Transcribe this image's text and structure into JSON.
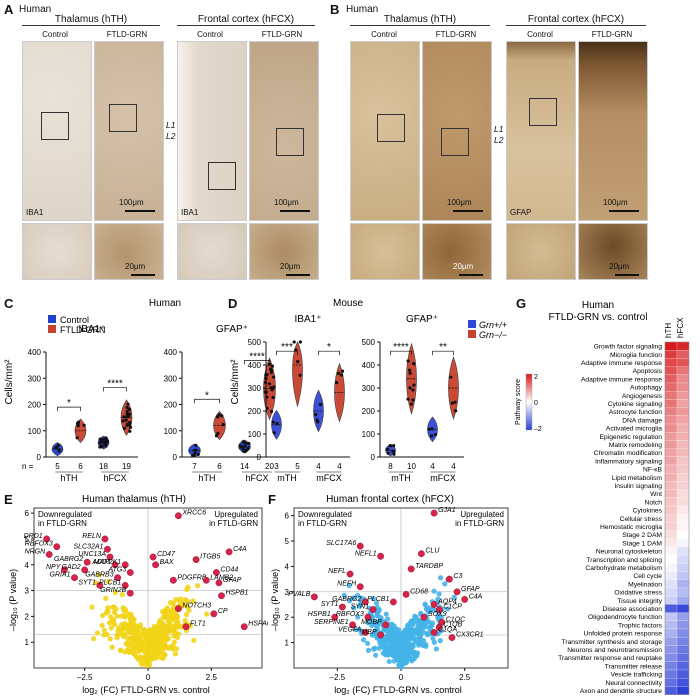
{
  "panelA": {
    "letter": "A",
    "species": "Human",
    "groups": [
      {
        "title": "Thalamus (hTH)",
        "conds": [
          "Control",
          "FTLD-GRN"
        ]
      },
      {
        "title": "Frontal cortex (hFCX)",
        "conds": [
          "Control",
          "FTLD-GRN"
        ]
      }
    ],
    "stain": "IBA1",
    "scale_main": "100μm",
    "scale_zoom": "20μm",
    "layers": [
      "L1",
      "L2"
    ]
  },
  "panelB": {
    "letter": "B",
    "species": "Human",
    "groups": [
      {
        "title": "Thalamus (hTH)",
        "conds": [
          "Control",
          "FTLD-GRN"
        ]
      },
      {
        "title": "Frontal cortex (hFCX)",
        "conds": [
          "Control",
          "FTLD-GRN"
        ]
      }
    ],
    "stain": "GFAP",
    "scale_main": "100μm",
    "scale_zoom": "20μm",
    "layers": [
      "L1",
      "L2"
    ]
  },
  "panelC": {
    "letter": "C",
    "species": "Human",
    "ylabel": "Cells/mm²",
    "legend": [
      "Control",
      "FTLD-GRN"
    ],
    "colors": {
      "control": "#1f3fd1",
      "ftld": "#c9412d"
    },
    "chart_data": [
      {
        "type": "violin",
        "title": "IBA1⁺",
        "ylim": [
          0,
          400
        ],
        "yticks": [
          "0",
          "100",
          "200",
          "300",
          "400"
        ],
        "groups": [
          "hTH",
          "hFCX"
        ],
        "n_label": "n =",
        "n": [
          "5",
          "6",
          "18",
          "19"
        ],
        "medians": [
          30,
          100,
          55,
          150
        ],
        "sig": [
          "*",
          "****"
        ]
      },
      {
        "type": "violin",
        "title": "GFAP⁺",
        "ylim": [
          0,
          400
        ],
        "yticks": [
          "0",
          "100",
          "200",
          "300",
          "400"
        ],
        "groups": [
          "hTH",
          "hFCX"
        ],
        "n_label": "n =",
        "n": [
          "7",
          "6",
          "14",
          "20"
        ],
        "medians": [
          25,
          120,
          40,
          260
        ],
        "sig": [
          "*",
          "****"
        ]
      }
    ]
  },
  "panelD": {
    "letter": "D",
    "species": "Mouse",
    "ylabel": "Cells/mm²",
    "legend": [
      "Grn+/+",
      "Grn−/−"
    ],
    "colors": {
      "wt": "#3347d6",
      "ko": "#c9412d"
    },
    "chart_data": [
      {
        "type": "violin",
        "title": "IBA1⁺",
        "ylim": [
          0,
          500
        ],
        "yticks": [
          "0",
          "100",
          "200",
          "300",
          "400",
          "500"
        ],
        "groups": [
          "mTH",
          "mFCX"
        ],
        "n": [
          "3",
          "5",
          "4",
          "4"
        ],
        "medians": [
          140,
          400,
          200,
          280
        ],
        "sig": [
          "***",
          "*"
        ]
      },
      {
        "type": "violin",
        "title": "GFAP⁺",
        "ylim": [
          0,
          500
        ],
        "yticks": [
          "0",
          "100",
          "200",
          "300",
          "400",
          "500"
        ],
        "groups": [
          "mTH",
          "mFCX"
        ],
        "n": [
          "8",
          "10",
          "4",
          "4"
        ],
        "medians": [
          30,
          340,
          120,
          300
        ],
        "sig": [
          "****",
          "**"
        ]
      }
    ]
  },
  "panelE": {
    "letter": "E",
    "title": "Human thalamus (hTH)",
    "down": "Downregulated in FTLD-GRN",
    "up": "Upregulated in FTLD-GRN",
    "xlabel": "log₂ (FC) FTLD-GRN vs. control",
    "ylabel": "–log₁₀ (P value)",
    "chart_data": {
      "type": "scatter",
      "xlim": [
        -4.5,
        4.5
      ],
      "ylim": [
        0,
        6.2
      ],
      "xticks": [
        "–2.5",
        "0",
        "2.5"
      ],
      "yticks": [
        "1",
        "2",
        "3",
        "4",
        "5",
        "6"
      ],
      "bg_color": "#f2d417",
      "hi_color": "#d9224a",
      "genes": [
        {
          "g": "XRCC6",
          "x": 1.2,
          "y": 5.9
        },
        {
          "g": "DRD1",
          "x": -4.0,
          "y": 5.0
        },
        {
          "g": "RELN",
          "x": -1.7,
          "y": 5.0
        },
        {
          "g": "RBFOX3",
          "x": -3.6,
          "y": 4.7
        },
        {
          "g": "SLC32A1",
          "x": -1.6,
          "y": 4.6
        },
        {
          "g": "C4A",
          "x": 3.2,
          "y": 4.5
        },
        {
          "g": "NRGN",
          "x": -3.9,
          "y": 4.4
        },
        {
          "g": "UNC13A",
          "x": -1.5,
          "y": 4.3
        },
        {
          "g": "CD47",
          "x": 0.2,
          "y": 4.3
        },
        {
          "g": "ITGB5",
          "x": 1.9,
          "y": 4.2
        },
        {
          "g": "GABRG2",
          "x": -2.4,
          "y": 4.1
        },
        {
          "g": "ADD1",
          "x": -1.3,
          "y": 4.0
        },
        {
          "g": "MAP2K1",
          "x": -0.9,
          "y": 4.0
        },
        {
          "g": "BAX",
          "x": 0.3,
          "y": 4.0
        },
        {
          "g": "NPY",
          "x": -3.3,
          "y": 3.8
        },
        {
          "g": "GAD2",
          "x": -2.5,
          "y": 3.8
        },
        {
          "g": "ATG3",
          "x": -0.7,
          "y": 3.7
        },
        {
          "g": "CD44",
          "x": 2.7,
          "y": 3.7
        },
        {
          "g": "GRIA1",
          "x": -2.9,
          "y": 3.5
        },
        {
          "g": "GABRB3",
          "x": -1.2,
          "y": 3.5
        },
        {
          "g": "PDGFRB",
          "x": 1.0,
          "y": 3.4
        },
        {
          "g": "LAMB2",
          "x": 2.3,
          "y": 3.4
        },
        {
          "g": "SYT1",
          "x": -1.9,
          "y": 3.2
        },
        {
          "g": "PLCB1",
          "x": -0.9,
          "y": 3.2
        },
        {
          "g": "GFAP",
          "x": 2.8,
          "y": 3.3
        },
        {
          "g": "GRIN2B",
          "x": -0.7,
          "y": 2.9
        },
        {
          "g": "HSPB1",
          "x": 2.9,
          "y": 2.8
        },
        {
          "g": "NOTCH3",
          "x": 1.2,
          "y": 2.3
        },
        {
          "g": "CP",
          "x": 2.6,
          "y": 2.1
        },
        {
          "g": "FLT1",
          "x": 1.5,
          "y": 1.6
        },
        {
          "g": "HSPA6",
          "x": 3.8,
          "y": 1.6
        }
      ]
    }
  },
  "panelF": {
    "letter": "F",
    "title": "Human frontal cortex (hFCX)",
    "down": "Downregulated in FTLD-GRN",
    "up": "Upregulated in FTLD-GRN",
    "xlabel": "log₂ (FC) FTLD-GRN vs. control",
    "ylabel": "–log₁₀ (P value)",
    "chart_data": {
      "type": "scatter",
      "xlim": [
        -4.2,
        4.2
      ],
      "ylim": [
        0,
        6.3
      ],
      "xticks": [
        "–2.5",
        "0",
        "2.5"
      ],
      "yticks": [
        "1",
        "2",
        "3",
        "4",
        "5",
        "6"
      ],
      "bg_color": "#45b3e8",
      "hi_color": "#d9224a",
      "genes": [
        {
          "g": "GJA1",
          "x": 1.3,
          "y": 6.1
        },
        {
          "g": "SLC17A6",
          "x": -1.6,
          "y": 4.8
        },
        {
          "g": "NEFL1",
          "x": -0.8,
          "y": 4.4
        },
        {
          "g": "CLU",
          "x": 0.8,
          "y": 4.5
        },
        {
          "g": "TARDBP",
          "x": 0.4,
          "y": 3.9
        },
        {
          "g": "C3",
          "x": 1.9,
          "y": 3.5
        },
        {
          "g": "NEFL",
          "x": -2.0,
          "y": 3.7
        },
        {
          "g": "NEFH",
          "x": -1.6,
          "y": 3.2
        },
        {
          "g": "GFAP",
          "x": 2.2,
          "y": 3.0
        },
        {
          "g": "C4A",
          "x": 2.5,
          "y": 2.7
        },
        {
          "g": "PVALB",
          "x": -3.4,
          "y": 2.8
        },
        {
          "g": "CD68",
          "x": 0.2,
          "y": 2.9
        },
        {
          "g": "GABRG2",
          "x": -1.4,
          "y": 2.6
        },
        {
          "g": "PLCB1",
          "x": -0.3,
          "y": 2.6
        },
        {
          "g": "AQP4",
          "x": 1.3,
          "y": 2.5
        },
        {
          "g": "SYT1",
          "x": -2.3,
          "y": 2.4
        },
        {
          "g": "SYN1",
          "x": -1.1,
          "y": 2.3
        },
        {
          "g": "C1CP",
          "x": 1.5,
          "y": 2.3
        },
        {
          "g": "HSPB1",
          "x": -2.6,
          "y": 2.0
        },
        {
          "g": "RBFOX3",
          "x": -1.3,
          "y": 2.0
        },
        {
          "g": "SOX9",
          "x": 0.9,
          "y": 2.0
        },
        {
          "g": "C1QC",
          "x": 1.6,
          "y": 1.8
        },
        {
          "g": "SERPINE1",
          "x": -1.9,
          "y": 1.7
        },
        {
          "g": "MOBP",
          "x": -0.6,
          "y": 1.7
        },
        {
          "g": "C1QB",
          "x": 1.5,
          "y": 1.6
        },
        {
          "g": "VEGFA",
          "x": -1.4,
          "y": 1.4
        },
        {
          "g": "MBP",
          "x": -0.8,
          "y": 1.3
        },
        {
          "g": "C1QA",
          "x": 1.3,
          "y": 1.4
        },
        {
          "g": "CX3CR1",
          "x": 2.0,
          "y": 1.2
        }
      ]
    }
  },
  "panelG": {
    "letter": "G",
    "species": "Human",
    "title": "FTLD-GRN vs. control",
    "columns": [
      "hTH",
      "hFCX"
    ],
    "legend_title": "Pathway score",
    "legend_ticks": [
      "2",
      "0",
      "–2"
    ],
    "chart_data": {
      "type": "heatmap",
      "range": [
        -2,
        2
      ],
      "rows": [
        {
          "p": "Growth factor signaling",
          "v": [
            2.0,
            1.9
          ]
        },
        {
          "p": "Microglia function",
          "v": [
            1.7,
            1.4
          ]
        },
        {
          "p": "Adaptive immune response",
          "v": [
            1.6,
            1.5
          ]
        },
        {
          "p": "Apoptosis",
          "v": [
            1.5,
            1.2
          ]
        },
        {
          "p": "Adaptive immune response",
          "v": [
            1.4,
            1.0
          ]
        },
        {
          "p": "Autophagy",
          "v": [
            1.3,
            1.0
          ]
        },
        {
          "p": "Angiogenesis",
          "v": [
            1.2,
            0.9
          ]
        },
        {
          "p": "Cytokine signaling",
          "v": [
            1.2,
            0.8
          ]
        },
        {
          "p": "Astrocyte function",
          "v": [
            1.1,
            0.9
          ]
        },
        {
          "p": "DNA damage",
          "v": [
            1.0,
            0.8
          ]
        },
        {
          "p": "Activated microglia",
          "v": [
            1.0,
            0.7
          ]
        },
        {
          "p": "Epigenetic regulation",
          "v": [
            0.9,
            0.7
          ]
        },
        {
          "p": "Matrix remodeling",
          "v": [
            0.9,
            0.6
          ]
        },
        {
          "p": "Chromatin modification",
          "v": [
            0.8,
            0.6
          ]
        },
        {
          "p": "Inflammatory signaling",
          "v": [
            0.8,
            0.5
          ]
        },
        {
          "p": "NF-κB",
          "v": [
            0.7,
            0.5
          ]
        },
        {
          "p": "Lipid metabolism",
          "v": [
            0.7,
            0.4
          ]
        },
        {
          "p": "Insulin signaling",
          "v": [
            0.6,
            0.4
          ]
        },
        {
          "p": "Wnt",
          "v": [
            0.6,
            0.3
          ]
        },
        {
          "p": "Notch",
          "v": [
            0.5,
            0.3
          ]
        },
        {
          "p": "Cytokines",
          "v": [
            0.5,
            0.2
          ]
        },
        {
          "p": "Cellular stress",
          "v": [
            0.4,
            0.1
          ]
        },
        {
          "p": "Hemostatic microglia",
          "v": [
            0.4,
            0.1
          ]
        },
        {
          "p": "Stage 2 DAM",
          "v": [
            0.3,
            0.0
          ]
        },
        {
          "p": "Stage 1 DAM",
          "v": [
            0.2,
            -0.1
          ]
        },
        {
          "p": "Neuronal cytoskeleton",
          "v": [
            0.1,
            -0.3
          ]
        },
        {
          "p": "Transcription and splicing",
          "v": [
            0.0,
            -0.4
          ]
        },
        {
          "p": "Carbohydrate metabolism",
          "v": [
            -0.1,
            -0.5
          ]
        },
        {
          "p": "Cell cycle",
          "v": [
            -0.2,
            -0.6
          ]
        },
        {
          "p": "Myelination",
          "v": [
            -0.3,
            -0.8
          ]
        },
        {
          "p": "Oxidative stress",
          "v": [
            -0.4,
            -0.7
          ]
        },
        {
          "p": "Tissue integrity",
          "v": [
            -0.5,
            -0.9
          ]
        },
        {
          "p": "Disease association",
          "v": [
            -1.7,
            -1.9
          ]
        },
        {
          "p": "Oligodendrocyte function",
          "v": [
            -0.6,
            -1.0
          ]
        },
        {
          "p": "Trophic factors",
          "v": [
            -0.7,
            -1.1
          ]
        },
        {
          "p": "Unfolded protein response",
          "v": [
            -0.8,
            -1.2
          ]
        },
        {
          "p": "Transmitter synthesis and storage",
          "v": [
            -1.0,
            -1.3
          ]
        },
        {
          "p": "Neurons and neurotransmission",
          "v": [
            -1.1,
            -1.4
          ]
        },
        {
          "p": "Transmitter response and reuptake",
          "v": [
            -1.2,
            -1.5
          ]
        },
        {
          "p": "Transmitter release",
          "v": [
            -1.3,
            -1.6
          ]
        },
        {
          "p": "Vesicle trafficking",
          "v": [
            -1.4,
            -1.7
          ]
        },
        {
          "p": "Neural connectivity",
          "v": [
            -1.5,
            -1.8
          ]
        },
        {
          "p": "Axon and dendrite structure",
          "v": [
            -1.7,
            -2.0
          ]
        }
      ]
    }
  }
}
